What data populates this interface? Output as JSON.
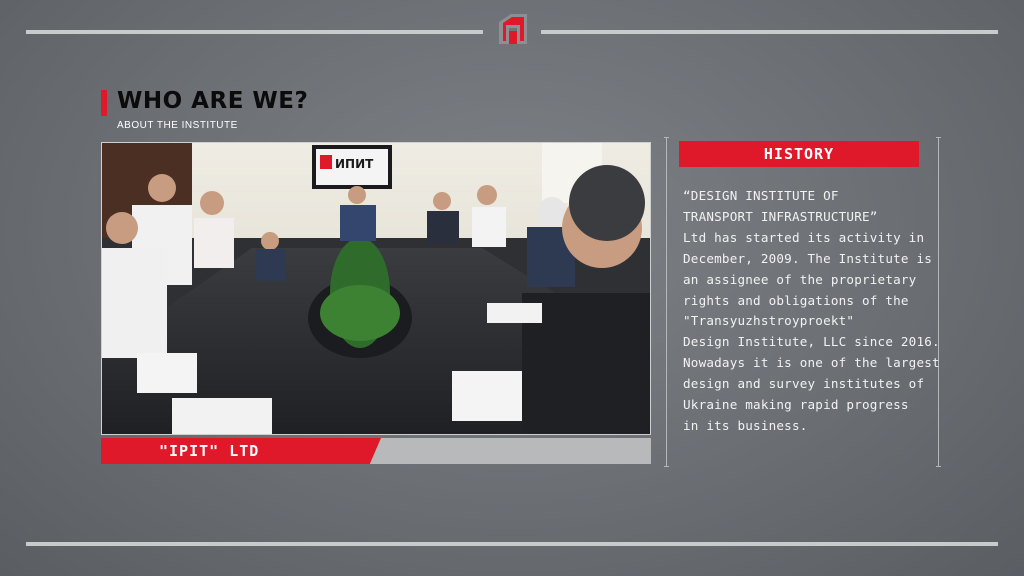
{
  "header": {
    "logo_icon": "ipit-logo-icon",
    "title": "WHO ARE WE?",
    "subtitle": "ABOUT THE INSTITUTE"
  },
  "photo": {
    "screen_logo_text": "ИПИТ"
  },
  "caption": {
    "label": "\"IPIT\" LTD"
  },
  "history": {
    "heading": "HISTORY",
    "lines": [
      "“DESIGN INSTITUTE OF",
      "TRANSPORT INFRASTRUCTURE”",
      "Ltd has started its activity in",
      "December, 2009. The Institute is",
      "an assignee of the proprietary",
      "rights and obligations of the",
      "\"Transyuzhstroyproekt\"",
      "Design Institute, LLC since 2016.",
      "Nowadays it is one of the largest",
      "design and survey institutes of",
      "Ukraine making rapid progress",
      "in its business."
    ]
  },
  "colors": {
    "accent": "#e0192a",
    "background": "#6b6f74",
    "line": "#c9cacc"
  }
}
